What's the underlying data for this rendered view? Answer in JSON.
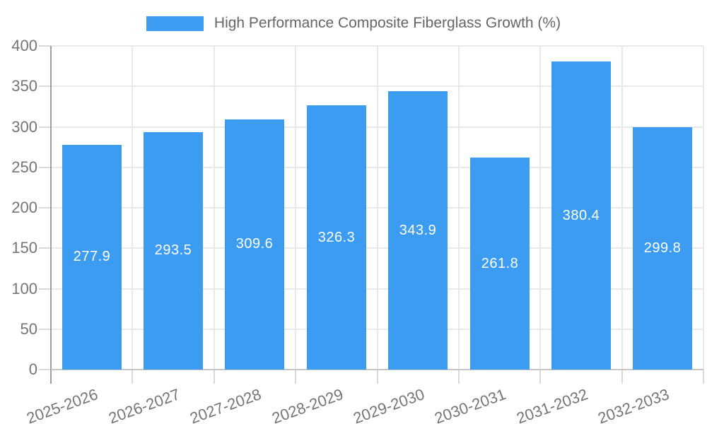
{
  "legend": {
    "label": "High Performance Composite Fiberglass Growth (%)"
  },
  "chart_data": {
    "type": "bar",
    "title": "High Performance Composite Fiberglass Growth (%)",
    "categories": [
      "2025-2026",
      "2026-2027",
      "2027-2028",
      "2028-2029",
      "2029-2030",
      "2030-2031",
      "2031-2032",
      "2032-2033"
    ],
    "values": [
      277.9,
      293.5,
      309.6,
      326.3,
      343.9,
      261.8,
      380.4,
      299.8
    ],
    "value_label_format": "one-decimal",
    "value_label_position": "inside-center",
    "xlabel": "",
    "ylabel": "",
    "ylim": [
      0,
      400
    ],
    "ytick_step": 50,
    "yticks": [
      0,
      50,
      100,
      150,
      200,
      250,
      300,
      350,
      400
    ],
    "grid": true,
    "legend_position": "top-center",
    "x_label_rotation_deg": -20
  },
  "colors": {
    "bar": "#3b9cf1",
    "grid": "#e9e9e9",
    "y_axis": "#9e9e9e",
    "x_axis": "#c6c6c6",
    "tick": "#d9d9d9",
    "tick_label": "#757575",
    "legend_label": "#666666",
    "value_label": "#ffffff",
    "background": "#ffffff"
  }
}
